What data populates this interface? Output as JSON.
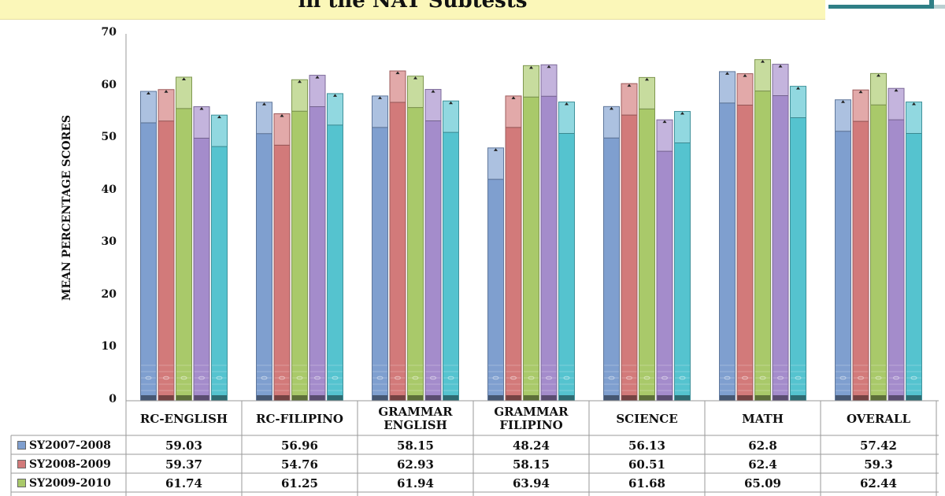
{
  "title": "in the NAT Subtests",
  "colors": {
    "title_band": "#fbf7b9",
    "series": [
      "#7f9fcf",
      "#d27a7a",
      "#a9c96a",
      "#a48ccb",
      "#55c3cf"
    ]
  },
  "chart_data": {
    "type": "bar",
    "ylabel": "MEAN PERCENTAGE SCORES",
    "ylim": [
      0,
      70
    ],
    "yticks": [
      0,
      10,
      20,
      30,
      40,
      50,
      60,
      70
    ],
    "grid": false,
    "categories": [
      "RC-ENGLISH",
      "RC-FILIPINO",
      "GRAMMAR\nENGLISH",
      "GRAMMAR\nFILIPINO",
      "SCIENCE",
      "MATH",
      "OVERALL"
    ],
    "series": [
      {
        "name": "SY2007-2008",
        "values": [
          59.03,
          56.96,
          58.15,
          48.24,
          56.13,
          62.8,
          57.42
        ]
      },
      {
        "name": "SY2008-2009",
        "values": [
          59.37,
          54.76,
          62.93,
          58.15,
          60.51,
          62.4,
          59.3
        ]
      },
      {
        "name": "SY2009-2010",
        "values": [
          61.74,
          61.25,
          61.94,
          63.94,
          61.68,
          65.09,
          62.44
        ]
      },
      {
        "name": "",
        "values": [
          56.1,
          62.1,
          59.4,
          64.1,
          53.6,
          64.2,
          59.6
        ]
      },
      {
        "name": "",
        "values": [
          54.5,
          58.6,
          57.2,
          57.0,
          55.2,
          60.0,
          57.0
        ]
      }
    ]
  }
}
